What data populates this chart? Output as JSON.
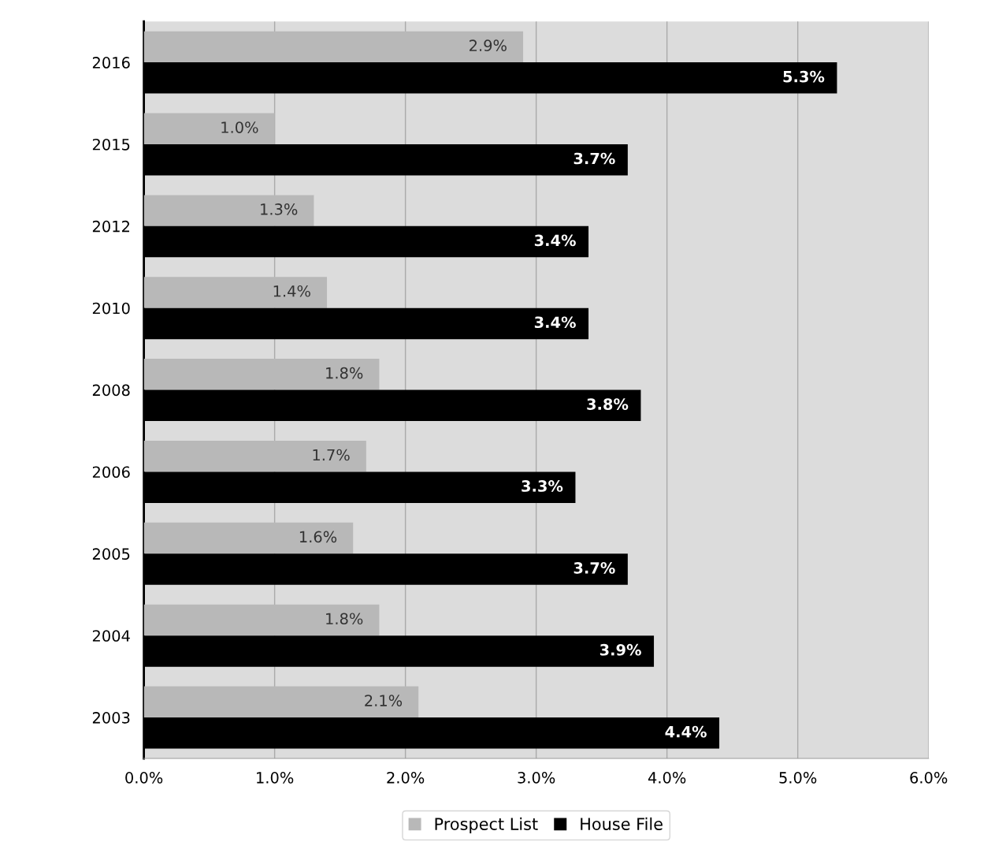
{
  "chart_data": {
    "type": "bar",
    "orientation": "horizontal",
    "categories": [
      "2016",
      "2015",
      "2012",
      "2010",
      "2008",
      "2006",
      "2005",
      "2004",
      "2003"
    ],
    "series": [
      {
        "name": "Prospect List",
        "color": "#b8b8b8",
        "values": [
          2.9,
          1.0,
          1.3,
          1.4,
          1.8,
          1.7,
          1.6,
          1.8,
          2.1
        ],
        "value_labels": [
          "2.9%",
          "1.0%",
          "1.3%",
          "1.4%",
          "1.8%",
          "1.7%",
          "1.6%",
          "1.8%",
          "2.1%"
        ]
      },
      {
        "name": "House File",
        "color": "#000000",
        "values": [
          5.3,
          3.7,
          3.4,
          3.4,
          3.8,
          3.3,
          3.7,
          3.9,
          4.4
        ],
        "value_labels": [
          "5.3%",
          "3.7%",
          "3.4%",
          "3.4%",
          "3.8%",
          "3.3%",
          "3.7%",
          "3.9%",
          "4.4%"
        ]
      }
    ],
    "xlim": [
      0,
      6
    ],
    "xticks": [
      {
        "value": 0,
        "label": "0.0%"
      },
      {
        "value": 1,
        "label": "1.0%"
      },
      {
        "value": 2,
        "label": "2.0%"
      },
      {
        "value": 3,
        "label": "3.0%"
      },
      {
        "value": 4,
        "label": "4.0%"
      },
      {
        "value": 5,
        "label": "5.0%"
      },
      {
        "value": 6,
        "label": "6.0%"
      }
    ],
    "grid": "x",
    "legend": "bottom"
  }
}
